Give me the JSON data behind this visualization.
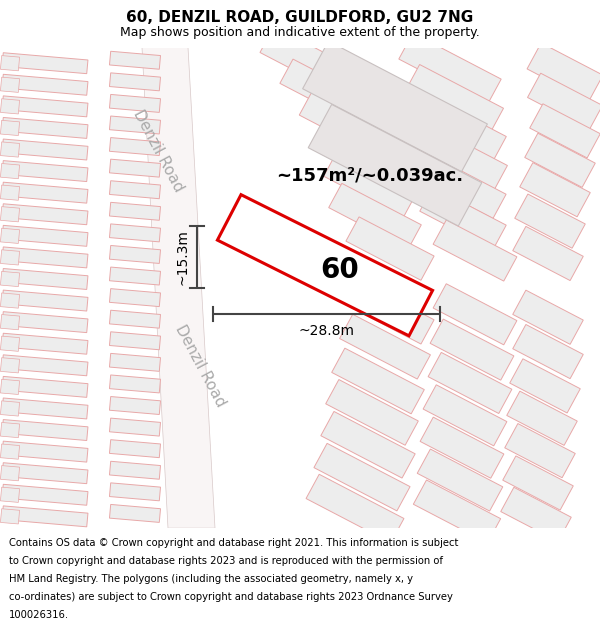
{
  "title": "60, DENZIL ROAD, GUILDFORD, GU2 7NG",
  "subtitle": "Map shows position and indicative extent of the property.",
  "footer_lines": [
    "Contains OS data © Crown copyright and database right 2021. This information is subject",
    "to Crown copyright and database rights 2023 and is reproduced with the permission of",
    "HM Land Registry. The polygons (including the associated geometry, namely x, y",
    "co-ordinates) are subject to Crown copyright and database rights 2023 Ordnance Survey",
    "100026316."
  ],
  "area_label": "~157m²/~0.039ac.",
  "number_label": "60",
  "dim_width": "~28.8m",
  "dim_height": "~15.3m",
  "road_label": "Denzil Road",
  "bg_color": "#f5efef",
  "building_fill": "#ededed",
  "building_fill2": "#e8e0e0",
  "building_edge": "#e8a8a8",
  "building_edge_gray": "#c8c0c0",
  "highlight_fill": "#ffffff",
  "red_stroke": "#dd0000",
  "line_color": "#444444",
  "road_label_color": "#aaaaaa",
  "road_fill": "#f9f5f5",
  "title_fontsize": 11,
  "subtitle_fontsize": 9,
  "footer_fontsize": 7.2,
  "area_fontsize": 13,
  "number_fontsize": 20,
  "dim_fontsize": 10,
  "road_fontsize": 11
}
